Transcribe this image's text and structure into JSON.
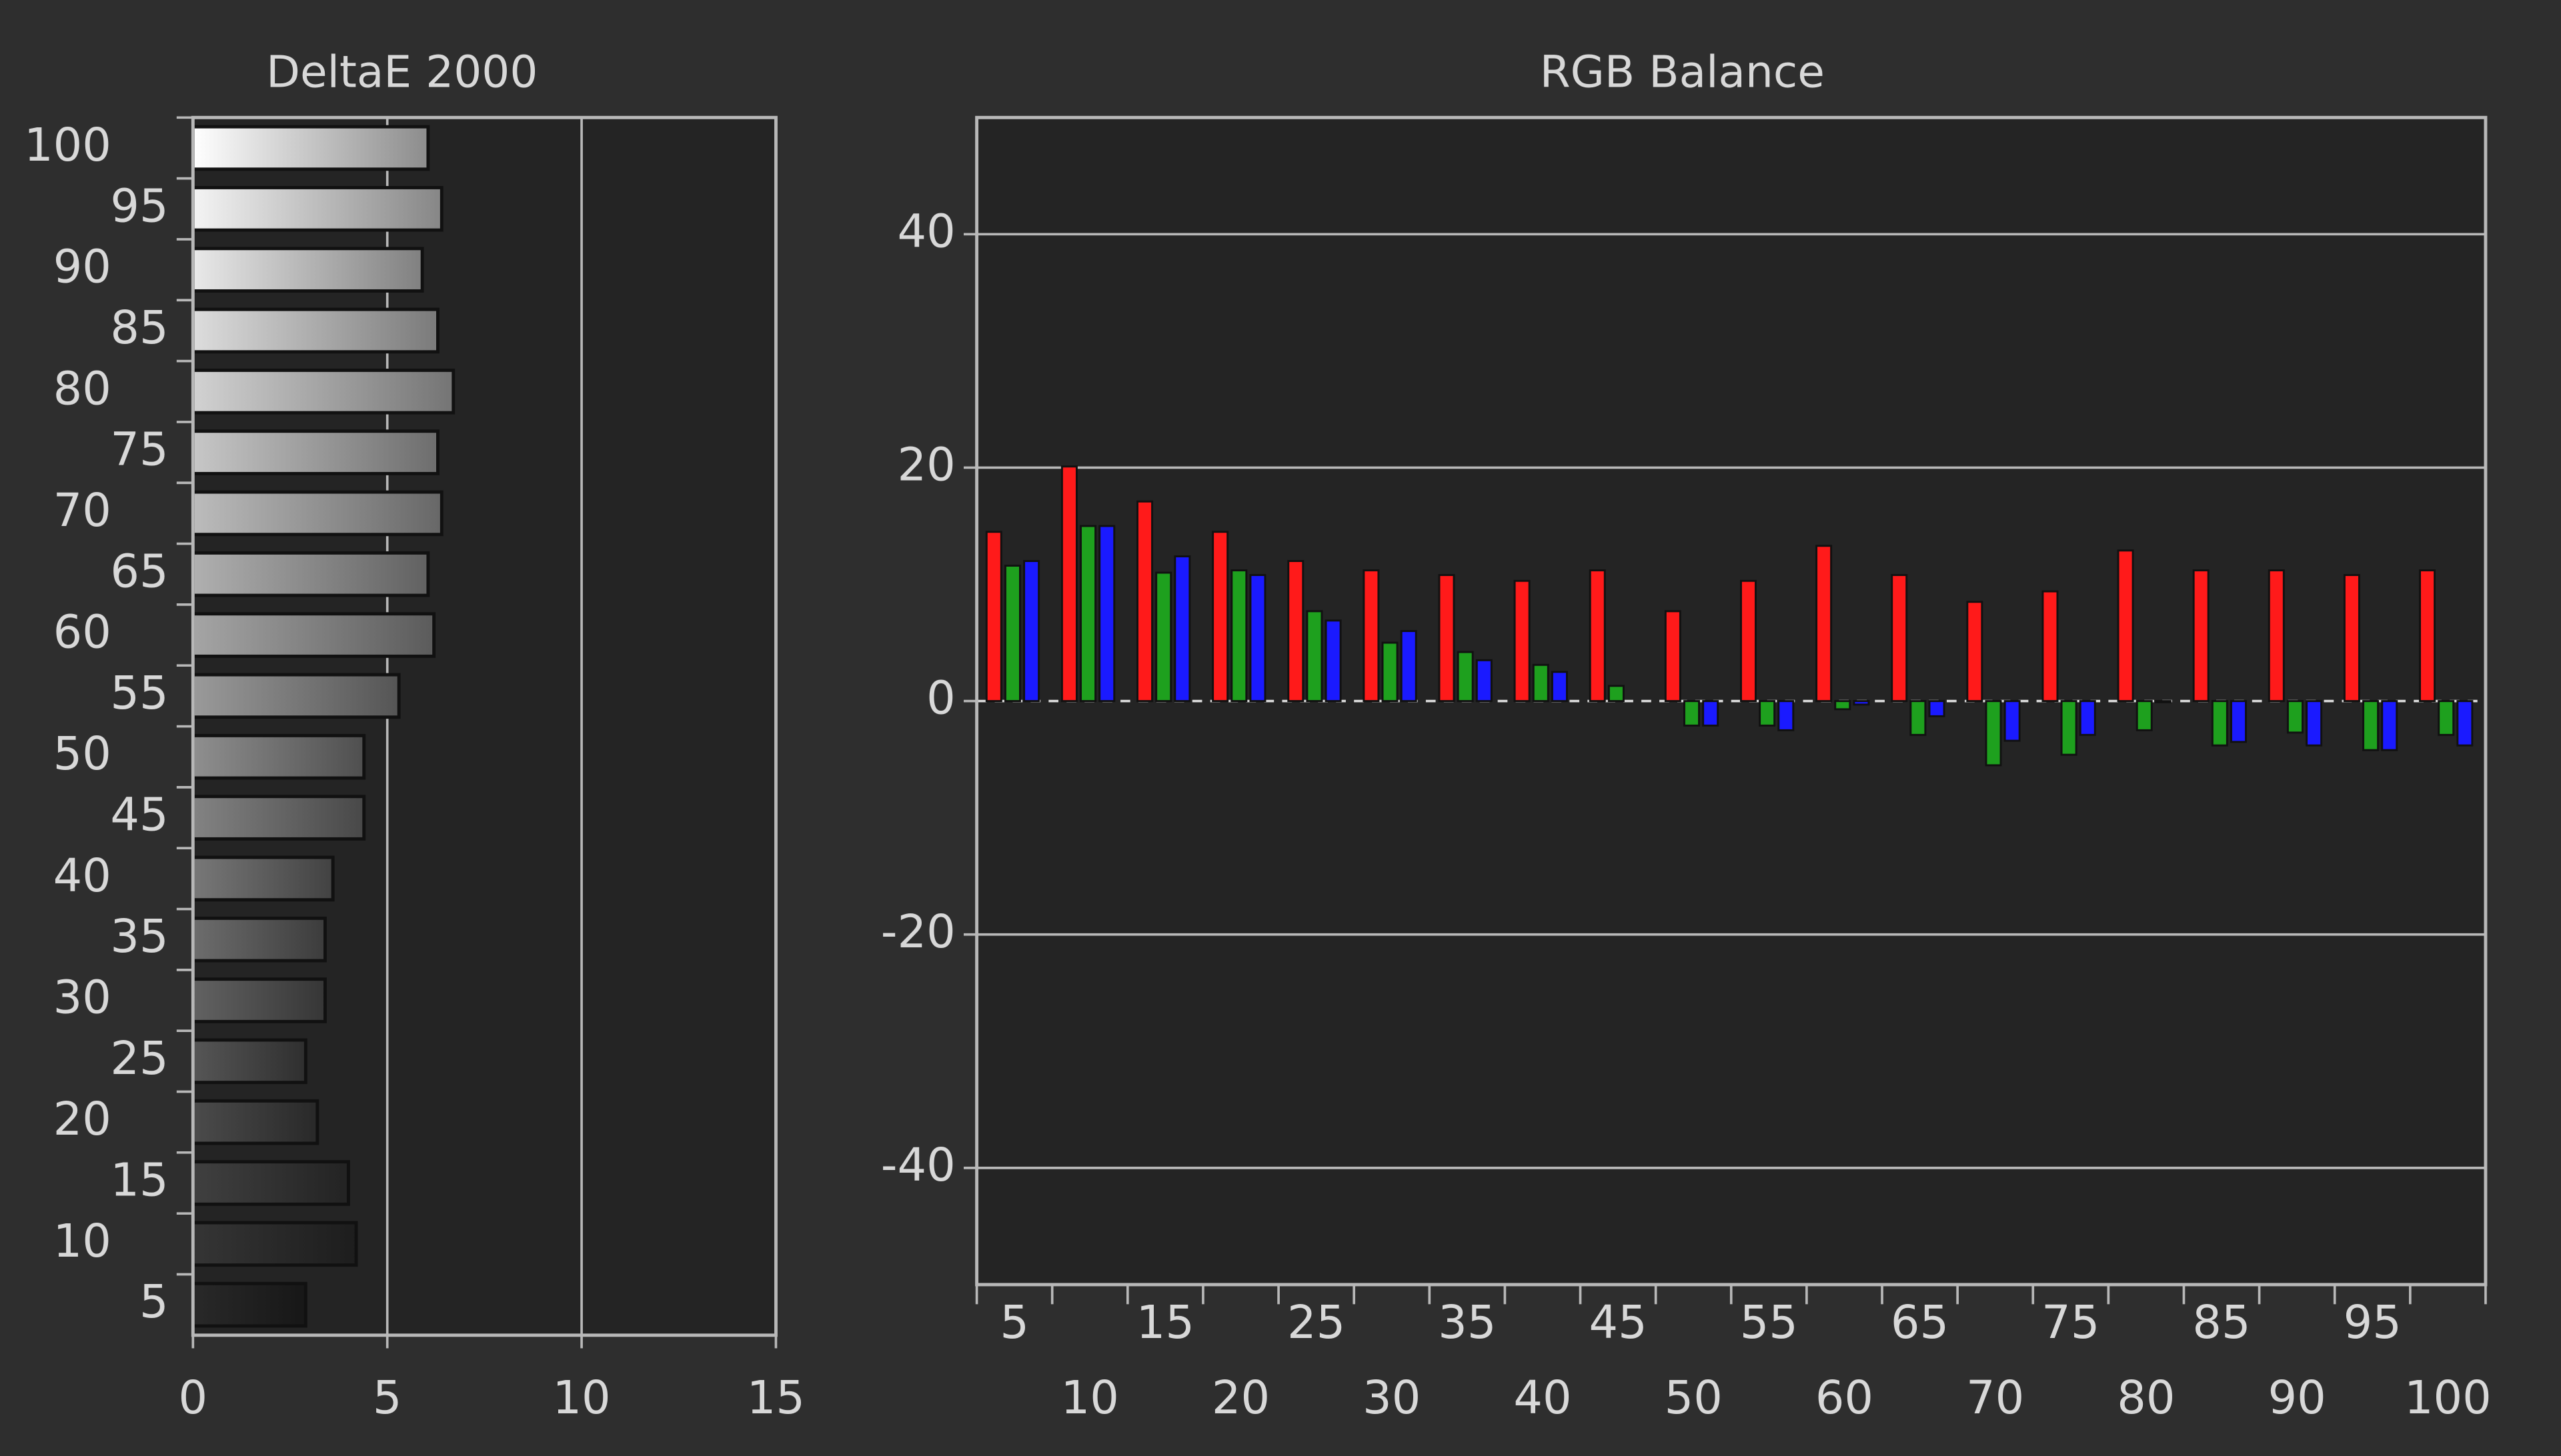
{
  "chart_data": [
    {
      "type": "hbar",
      "title": "DeltaE 2000",
      "categories": [
        "5",
        "10",
        "15",
        "20",
        "25",
        "30",
        "35",
        "40",
        "45",
        "50",
        "55",
        "60",
        "65",
        "70",
        "75",
        "80",
        "85",
        "90",
        "95",
        "100"
      ],
      "values": [
        2.9,
        4.2,
        4.0,
        3.2,
        2.9,
        3.4,
        3.4,
        3.6,
        4.4,
        4.4,
        5.3,
        6.2,
        6.05,
        6.4,
        6.3,
        6.7,
        6.3,
        5.9,
        6.4,
        6.05
      ],
      "xlim": [
        0,
        15
      ],
      "xticks": [
        0,
        5,
        10,
        15
      ],
      "grid": true
    },
    {
      "type": "grouped-bar",
      "title": "RGB Balance",
      "categories": [
        "5",
        "10",
        "15",
        "20",
        "25",
        "30",
        "35",
        "40",
        "45",
        "50",
        "55",
        "60",
        "65",
        "70",
        "75",
        "80",
        "85",
        "90",
        "95",
        "100"
      ],
      "series": [
        {
          "color": "#ff1a1a",
          "values": [
            14.5,
            20.1,
            17.1,
            14.5,
            12.0,
            11.2,
            10.8,
            10.3,
            11.2,
            7.7,
            10.3,
            13.3,
            10.8,
            8.5,
            9.4,
            12.9,
            11.2,
            11.2,
            10.8,
            11.2
          ]
        },
        {
          "color": "#1ea01e",
          "values": [
            11.6,
            15.0,
            11.0,
            11.2,
            7.7,
            5.0,
            4.2,
            3.1,
            1.3,
            -2.1,
            -2.1,
            -0.7,
            -2.9,
            -5.5,
            -4.6,
            -2.5,
            -3.8,
            -2.7,
            -4.2,
            -2.9
          ]
        },
        {
          "color": "#1a1aff",
          "values": [
            12.0,
            15.0,
            12.4,
            10.8,
            6.9,
            6.0,
            3.5,
            2.5,
            0,
            -2.1,
            -2.5,
            -0.3,
            -1.3,
            -3.4,
            -2.9,
            -0.1,
            -3.5,
            -3.8,
            -4.2,
            -3.8
          ]
        }
      ],
      "ylim": [
        -50,
        50
      ],
      "yticks": [
        -40,
        -20,
        0,
        20,
        40
      ],
      "grid": true
    }
  ]
}
